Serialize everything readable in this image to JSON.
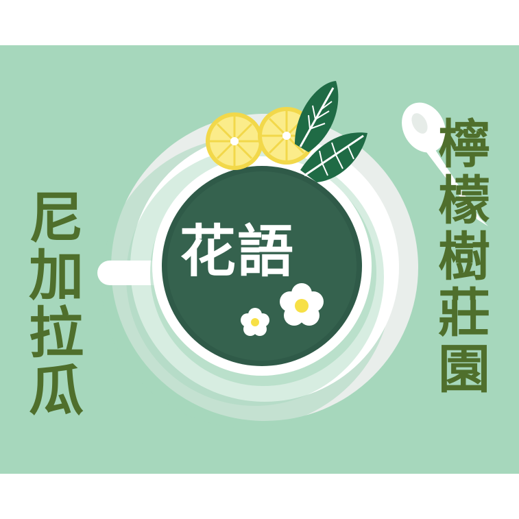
{
  "texts": {
    "left_vertical": "尼加拉瓜",
    "right_vertical": "檸檬樹莊園",
    "center": "花語"
  },
  "colors": {
    "background": "#a6d7bc",
    "text": "#4f6f2c",
    "tea": "#2f5a48",
    "lemon": "#f2d84a",
    "leaf": "#1f6b45"
  },
  "icons": [
    "cup-icon",
    "saucer-icon",
    "spoon-icon",
    "lemon-slice-icon",
    "leaf-icon",
    "flower-icon"
  ]
}
